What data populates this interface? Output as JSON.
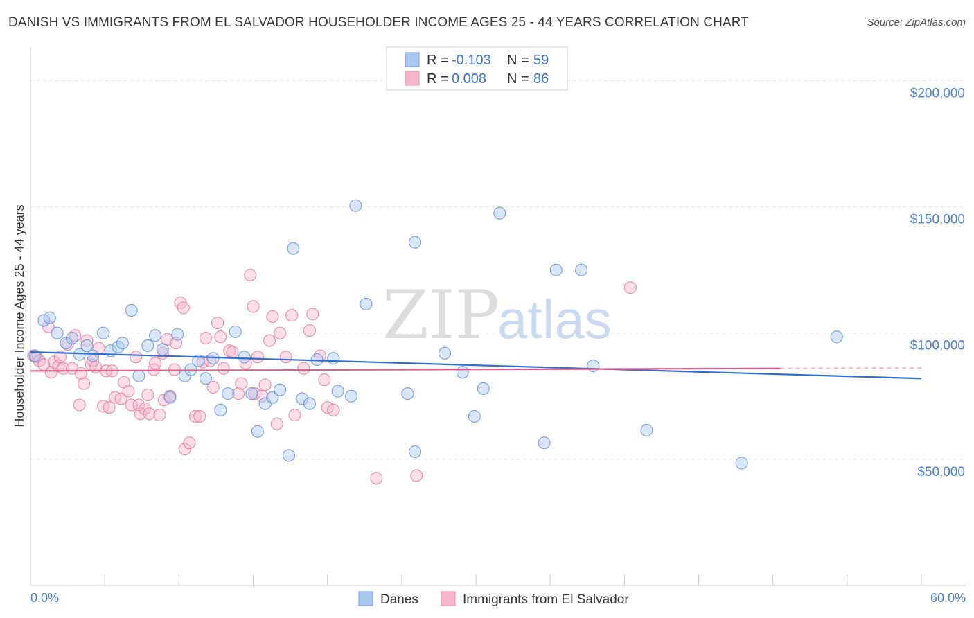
{
  "title": "DANISH VS IMMIGRANTS FROM EL SALVADOR HOUSEHOLDER INCOME AGES 25 - 44 YEARS CORRELATION CHART",
  "source": "Source: ZipAtlas.com",
  "watermark": {
    "zip": "ZIP",
    "atlas": "atlas"
  },
  "legend_top": [
    {
      "r_label": "R =",
      "r_value": "-0.103",
      "n_label": "N =",
      "n_value": "59",
      "color": "#a9c8f0"
    },
    {
      "r_label": "R =",
      "r_value": "0.008",
      "n_label": "N =",
      "n_value": "86",
      "color": "#f6b6cb"
    }
  ],
  "legend_bottom": [
    {
      "label": "Danes",
      "color": "#a9c8f0"
    },
    {
      "label": "Immigrants from El Salvador",
      "color": "#f6b6cb"
    }
  ],
  "chart_data": {
    "type": "scatter",
    "title": "DANISH VS IMMIGRANTS FROM EL SALVADOR HOUSEHOLDER INCOME AGES 25 - 44 YEARS CORRELATION CHART",
    "xlabel": "",
    "ylabel": "Householder Income Ages 25 - 44 years",
    "xlim": [
      0,
      60
    ],
    "ylim": [
      0,
      210000
    ],
    "x_tick_labels": [
      "0.0%",
      "60.0%"
    ],
    "y_ticks": [
      50000,
      100000,
      150000,
      200000
    ],
    "y_tick_labels": [
      "$50,000",
      "$100,000",
      "$150,000",
      "$200,000"
    ],
    "grid": true,
    "series": [
      {
        "name": "Danes",
        "color": "#4a86d8",
        "fill": "#a9c8f0",
        "trend": {
          "x": [
            0,
            60
          ],
          "y": [
            92500,
            82000
          ]
        },
        "points": [
          [
            0.3,
            91000
          ],
          [
            0.9,
            105000
          ],
          [
            1.3,
            106000
          ],
          [
            1.8,
            100000
          ],
          [
            2.4,
            96000
          ],
          [
            2.8,
            98000
          ],
          [
            3.3,
            91500
          ],
          [
            3.8,
            95000
          ],
          [
            4.2,
            91000
          ],
          [
            4.9,
            100000
          ],
          [
            5.4,
            93000
          ],
          [
            5.9,
            94500
          ],
          [
            6.2,
            96000
          ],
          [
            6.8,
            109000
          ],
          [
            7.3,
            83000
          ],
          [
            7.9,
            95000
          ],
          [
            8.4,
            99000
          ],
          [
            8.9,
            93500
          ],
          [
            9.4,
            74500
          ],
          [
            9.9,
            99500
          ],
          [
            10.4,
            83000
          ],
          [
            10.8,
            85500
          ],
          [
            11.3,
            89000
          ],
          [
            11.8,
            82000
          ],
          [
            12.3,
            90000
          ],
          [
            12.8,
            69500
          ],
          [
            13.3,
            76000
          ],
          [
            13.8,
            100500
          ],
          [
            14.4,
            90500
          ],
          [
            14.9,
            76000
          ],
          [
            15.3,
            61000
          ],
          [
            15.8,
            72000
          ],
          [
            16.3,
            74500
          ],
          [
            16.8,
            77500
          ],
          [
            17.4,
            51500
          ],
          [
            17.7,
            133500
          ],
          [
            18.3,
            74000
          ],
          [
            18.8,
            72000
          ],
          [
            19.3,
            89500
          ],
          [
            20.4,
            90000
          ],
          [
            20.7,
            77000
          ],
          [
            21.6,
            75000
          ],
          [
            21.9,
            150500
          ],
          [
            22.6,
            111500
          ],
          [
            25.4,
            76000
          ],
          [
            25.9,
            53000
          ],
          [
            25.9,
            136000
          ],
          [
            27.9,
            92000
          ],
          [
            29.1,
            84500
          ],
          [
            29.9,
            67000
          ],
          [
            30.5,
            78000
          ],
          [
            31.6,
            147500
          ],
          [
            34.6,
            56500
          ],
          [
            35.4,
            125000
          ],
          [
            37.1,
            125000
          ],
          [
            37.9,
            87000
          ],
          [
            41.5,
            61500
          ],
          [
            47.9,
            48500
          ],
          [
            54.3,
            98500
          ]
        ]
      },
      {
        "name": "Immigrants from El Salvador",
        "color": "#e66a94",
        "fill": "#f6b6cb",
        "trend": {
          "x": [
            0,
            50.5
          ],
          "y": [
            85000,
            86000
          ]
        },
        "points": [
          [
            0.2,
            91000
          ],
          [
            0.4,
            90500
          ],
          [
            0.6,
            89000
          ],
          [
            0.9,
            87500
          ],
          [
            1.2,
            102500
          ],
          [
            1.4,
            84500
          ],
          [
            1.6,
            88500
          ],
          [
            1.9,
            87000
          ],
          [
            2.0,
            90500
          ],
          [
            2.2,
            86000
          ],
          [
            2.5,
            95500
          ],
          [
            2.8,
            86000
          ],
          [
            3.0,
            99000
          ],
          [
            3.3,
            71500
          ],
          [
            3.4,
            84000
          ],
          [
            3.6,
            80000
          ],
          [
            3.8,
            97000
          ],
          [
            4.1,
            87500
          ],
          [
            4.2,
            89000
          ],
          [
            4.4,
            86500
          ],
          [
            4.6,
            94000
          ],
          [
            4.9,
            71000
          ],
          [
            5.1,
            85000
          ],
          [
            5.3,
            70500
          ],
          [
            5.5,
            85000
          ],
          [
            5.7,
            74500
          ],
          [
            6.1,
            74000
          ],
          [
            6.3,
            80500
          ],
          [
            6.6,
            77000
          ],
          [
            6.8,
            71500
          ],
          [
            7.1,
            90500
          ],
          [
            7.3,
            71500
          ],
          [
            7.4,
            68000
          ],
          [
            7.7,
            70000
          ],
          [
            7.9,
            75500
          ],
          [
            8.0,
            68000
          ],
          [
            8.3,
            85500
          ],
          [
            8.4,
            88000
          ],
          [
            8.7,
            67500
          ],
          [
            8.9,
            92000
          ],
          [
            9.0,
            73500
          ],
          [
            9.2,
            97500
          ],
          [
            9.4,
            75000
          ],
          [
            9.7,
            85500
          ],
          [
            9.8,
            96000
          ],
          [
            10.1,
            112000
          ],
          [
            10.3,
            110000
          ],
          [
            10.4,
            54000
          ],
          [
            10.7,
            56500
          ],
          [
            11.1,
            67000
          ],
          [
            11.4,
            67000
          ],
          [
            11.6,
            88500
          ],
          [
            11.8,
            98000
          ],
          [
            12.1,
            89000
          ],
          [
            12.3,
            78500
          ],
          [
            12.6,
            104000
          ],
          [
            12.8,
            98500
          ],
          [
            13.0,
            86000
          ],
          [
            13.4,
            93000
          ],
          [
            13.6,
            92500
          ],
          [
            14.0,
            76000
          ],
          [
            14.2,
            80000
          ],
          [
            14.5,
            88000
          ],
          [
            14.8,
            123000
          ],
          [
            15.0,
            110500
          ],
          [
            15.1,
            76000
          ],
          [
            15.3,
            90500
          ],
          [
            15.6,
            75000
          ],
          [
            15.8,
            79500
          ],
          [
            16.1,
            97000
          ],
          [
            16.3,
            106500
          ],
          [
            16.6,
            64000
          ],
          [
            16.8,
            100000
          ],
          [
            17.2,
            90500
          ],
          [
            17.6,
            107000
          ],
          [
            17.8,
            67500
          ],
          [
            18.4,
            86000
          ],
          [
            18.8,
            101000
          ],
          [
            19.0,
            107500
          ],
          [
            19.5,
            91000
          ],
          [
            19.8,
            81500
          ],
          [
            20.0,
            70500
          ],
          [
            20.4,
            69500
          ],
          [
            23.3,
            42500
          ],
          [
            26.0,
            43500
          ],
          [
            40.4,
            118000
          ]
        ]
      }
    ]
  }
}
